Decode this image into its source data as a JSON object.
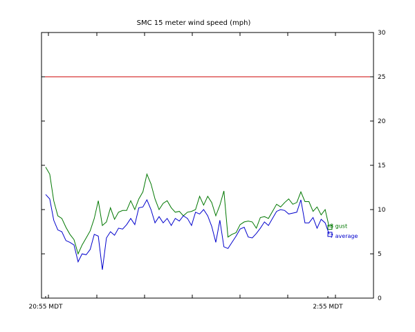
{
  "chart_data": {
    "type": "line",
    "title": "SMC 15 meter wind speed (mph)",
    "xlabel": "",
    "ylabel": "",
    "ylim": [
      0,
      30
    ],
    "y_ticks": [
      0,
      5,
      10,
      15,
      20,
      25,
      30
    ],
    "y_axis_side": "right",
    "x_tick_labels": [
      "20:55 MDT",
      "2:55 MDT"
    ],
    "grid": false,
    "legend": "end-of-line labels",
    "reference_lines": [
      {
        "y": 25,
        "color": "#cc0000"
      }
    ],
    "series": [
      {
        "name": "gust",
        "color": "#007700",
        "end_value": "8",
        "values": [
          14.8,
          14.0,
          11.0,
          9.3,
          9.0,
          8.0,
          7.2,
          6.6,
          5.0,
          6.0,
          6.8,
          7.6,
          9.0,
          11.0,
          8.2,
          8.6,
          10.2,
          8.9,
          9.7,
          9.9,
          9.9,
          11.0,
          10.0,
          11.2,
          12.0,
          14.0,
          12.9,
          11.2,
          10.0,
          10.7,
          11.0,
          10.2,
          9.7,
          9.8,
          9.3,
          9.7,
          9.8,
          10.0,
          11.5,
          10.5,
          11.5,
          10.8,
          9.3,
          10.5,
          12.1,
          6.9,
          7.2,
          7.4,
          8.3,
          8.6,
          8.7,
          8.6,
          7.9,
          9.1,
          9.2,
          9.0,
          9.8,
          10.6,
          10.3,
          10.8,
          11.2,
          10.6,
          10.8,
          12.0,
          10.9,
          10.9,
          9.8,
          10.3,
          9.4,
          10.0,
          8.0
        ]
      },
      {
        "name": "average",
        "color": "#0000cc",
        "end_value": "7",
        "values": [
          11.7,
          11.2,
          8.8,
          7.7,
          7.5,
          6.5,
          6.3,
          6.0,
          4.1,
          5.0,
          4.9,
          5.5,
          7.2,
          7.0,
          3.2,
          6.8,
          7.5,
          7.1,
          7.9,
          7.8,
          8.3,
          9.0,
          8.3,
          10.2,
          10.3,
          11.1,
          10.0,
          8.5,
          9.2,
          8.5,
          9.0,
          8.2,
          9.0,
          8.7,
          9.3,
          9.0,
          8.2,
          9.7,
          9.5,
          10.0,
          9.3,
          8.1,
          6.3,
          8.8,
          5.8,
          5.6,
          6.3,
          7.0,
          7.8,
          8.0,
          6.9,
          6.8,
          7.3,
          7.9,
          8.6,
          8.2,
          9.0,
          9.8,
          10.0,
          9.9,
          9.5,
          9.6,
          9.7,
          11.1,
          8.5,
          8.5,
          9.1,
          7.9,
          8.9,
          8.5,
          7.2
        ]
      }
    ]
  }
}
